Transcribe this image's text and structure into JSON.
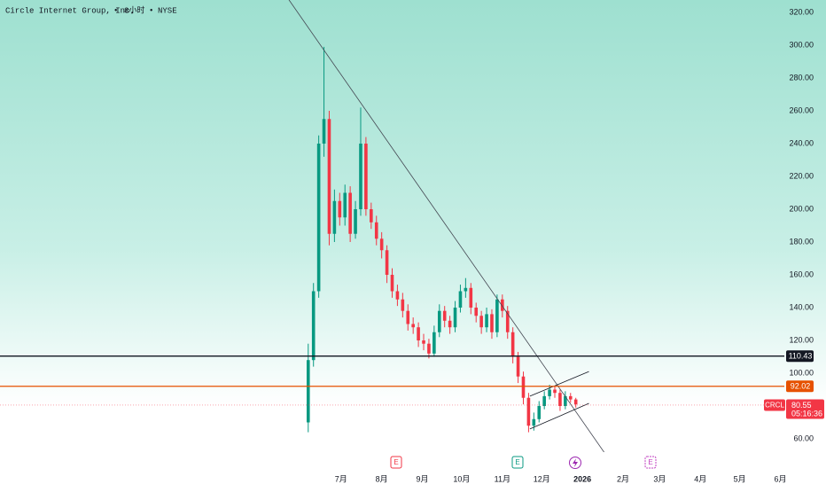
{
  "chart_data": {
    "type": "candlestick",
    "title": "Circle Internet Group, Inc.",
    "interval": "8小时",
    "exchange": "NYSE",
    "up_color": "#089981",
    "down_color": "#f23645",
    "x": [
      5,
      9,
      13,
      17,
      21,
      25,
      29,
      33,
      37,
      41,
      45,
      49,
      53,
      57,
      61,
      65,
      69,
      73,
      77,
      81,
      85,
      89,
      93,
      97,
      101,
      105,
      109,
      113,
      117,
      121,
      125,
      129,
      133,
      137,
      141,
      145,
      149,
      153,
      157,
      161,
      165,
      169,
      173,
      177,
      181,
      185,
      189,
      193,
      197,
      201,
      205,
      209
    ],
    "open": [
      70,
      108,
      150,
      240,
      255,
      185,
      205,
      195,
      210,
      185,
      200,
      240,
      200,
      192,
      182,
      175,
      160,
      150,
      145,
      138,
      130,
      128,
      120,
      118,
      112,
      125,
      138,
      132,
      128,
      140,
      150,
      152,
      140,
      135,
      128,
      136,
      125,
      145,
      138,
      125,
      110,
      98,
      85,
      68,
      72,
      80,
      86,
      90,
      88,
      80,
      86,
      84
    ],
    "high": [
      118,
      155,
      245,
      299,
      260,
      212,
      210,
      215,
      214,
      205,
      262,
      244,
      204,
      196,
      186,
      178,
      164,
      154,
      149,
      142,
      134,
      131,
      124,
      121,
      129,
      142,
      141,
      135,
      144,
      154,
      158,
      155,
      143,
      138,
      140,
      139,
      148,
      148,
      141,
      128,
      113,
      101,
      88,
      76,
      83,
      89,
      93,
      92,
      90,
      89,
      88,
      85
    ],
    "low": [
      64,
      104,
      146,
      232,
      178,
      180,
      190,
      190,
      180,
      182,
      196,
      196,
      188,
      178,
      170,
      155,
      146,
      141,
      134,
      126,
      124,
      116,
      114,
      109,
      110,
      122,
      128,
      124,
      125,
      137,
      146,
      136,
      131,
      124,
      125,
      121,
      122,
      134,
      121,
      106,
      94,
      81,
      64,
      65,
      70,
      78,
      84,
      85,
      77,
      78,
      82,
      79
    ],
    "close": [
      108,
      150,
      240,
      255,
      185,
      205,
      195,
      210,
      185,
      200,
      240,
      200,
      192,
      182,
      175,
      160,
      150,
      145,
      138,
      130,
      128,
      120,
      118,
      112,
      125,
      138,
      132,
      128,
      140,
      150,
      152,
      140,
      135,
      128,
      136,
      125,
      145,
      138,
      125,
      110,
      98,
      85,
      68,
      72,
      80,
      86,
      90,
      88,
      80,
      86,
      84,
      81
    ],
    "xlim": [
      -230,
      368
    ],
    "xticks": [
      {
        "value": 30,
        "label": "7月"
      },
      {
        "value": 61,
        "label": "8月"
      },
      {
        "value": 92,
        "label": "9月"
      },
      {
        "value": 122,
        "label": "10月"
      },
      {
        "value": 153,
        "label": "11月"
      },
      {
        "value": 183,
        "label": "12月"
      },
      {
        "value": 214,
        "label": "2026"
      },
      {
        "value": 245,
        "label": "2月"
      },
      {
        "value": 273,
        "label": "3月"
      },
      {
        "value": 304,
        "label": "4月"
      },
      {
        "value": 334,
        "label": "5月"
      },
      {
        "value": 365,
        "label": "6月"
      }
    ],
    "ylim": [
      60,
      320
    ],
    "yticks": [
      {
        "value": 60,
        "label": "60.00"
      },
      {
        "value": 100,
        "label": "100.00"
      },
      {
        "value": 120,
        "label": "120.00"
      },
      {
        "value": 140,
        "label": "140.00"
      },
      {
        "value": 160,
        "label": "160.00"
      },
      {
        "value": 180,
        "label": "180.00"
      },
      {
        "value": 200,
        "label": "200.00"
      },
      {
        "value": 220,
        "label": "220.00"
      },
      {
        "value": 240,
        "label": "240.00"
      },
      {
        "value": 260,
        "label": "260.00"
      },
      {
        "value": 280,
        "label": "280.00"
      },
      {
        "value": 300,
        "label": "300.00"
      },
      {
        "value": 320,
        "label": "320.00"
      }
    ],
    "hlines": [
      {
        "value": 110.43,
        "color": "#131722"
      },
      {
        "value": 92.02,
        "color": "#e65100"
      }
    ],
    "last_price": {
      "symbol": "CRCL",
      "value": 80.55,
      "countdown": "05:16:36",
      "color": "#f23645"
    },
    "trendlines": [
      {
        "x": [
          -10,
          240
        ],
        "y": [
          328,
          41
        ],
        "color": "#434651"
      },
      {
        "x": [
          174,
          219
        ],
        "y": [
          86,
          101
        ],
        "color": "#131722"
      },
      {
        "x": [
          174,
          219
        ],
        "y": [
          66,
          81.6
        ],
        "color": "#131722"
      }
    ]
  }
}
